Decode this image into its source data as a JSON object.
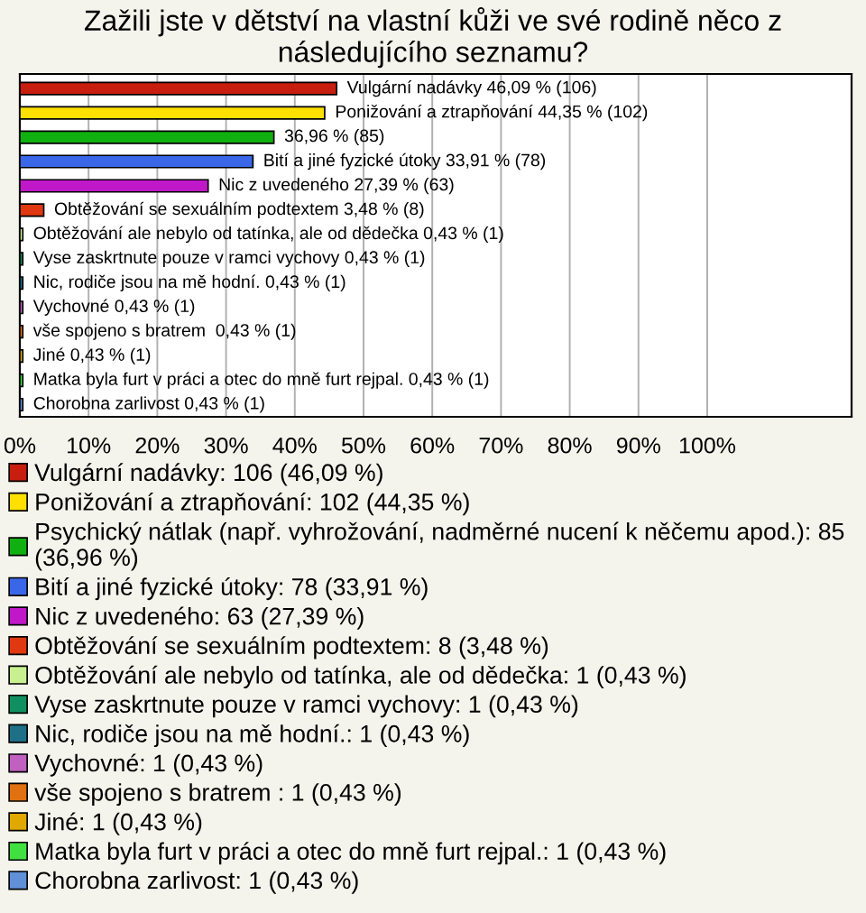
{
  "chart_data": {
    "type": "bar",
    "orientation": "horizontal",
    "title": "Zažili jste v dětství na vlastní kůži ve své rodině něco z následujícího seznamu?",
    "categories": [
      null,
      null,
      null,
      null,
      null,
      null,
      null,
      null,
      null,
      null,
      null,
      null,
      null,
      null
    ],
    "series": [
      {
        "name": "Vulgární nadávky: 106 (46,09 %)",
        "color": "#c81e10",
        "values": [
          46.09,
          null,
          null,
          null,
          null,
          null,
          null,
          null,
          null,
          null,
          null,
          null,
          null,
          null
        ],
        "value_labels": [
          "Vulgární nadávky 46,09 % (106)",
          null,
          null,
          null,
          null,
          null,
          null,
          null,
          null,
          null,
          null,
          null,
          null,
          null
        ]
      },
      {
        "name": "Ponižování a ztrapňování: 102 (44,35 %)",
        "color": "#ffe000",
        "values": [
          null,
          44.35,
          null,
          null,
          null,
          null,
          null,
          null,
          null,
          null,
          null,
          null,
          null,
          null
        ],
        "value_labels": [
          null,
          "Ponižování a ztrapňování 44,35 % (102)",
          null,
          null,
          null,
          null,
          null,
          null,
          null,
          null,
          null,
          null,
          null,
          null
        ]
      },
      {
        "name": "Psychický nátlak (např. vyhrožování, nadměrné nucení k něčemu apod.): 85\n(36,96 %)",
        "color": "#10b010",
        "values": [
          null,
          null,
          36.96,
          null,
          null,
          null,
          null,
          null,
          null,
          null,
          null,
          null,
          null,
          null
        ],
        "value_labels": [
          null,
          null,
          "36,96 % (85)",
          null,
          null,
          null,
          null,
          null,
          null,
          null,
          null,
          null,
          null,
          null
        ]
      },
      {
        "name": "Bití a jiné fyzické útoky: 78 (33,91 %)",
        "color": "#3a66e8",
        "values": [
          null,
          null,
          null,
          33.91,
          null,
          null,
          null,
          null,
          null,
          null,
          null,
          null,
          null,
          null
        ],
        "value_labels": [
          null,
          null,
          null,
          "Bití a jiné fyzické útoky 33,91 % (78)",
          null,
          null,
          null,
          null,
          null,
          null,
          null,
          null,
          null,
          null
        ]
      },
      {
        "name": "Nic z uvedeného: 63 (27,39 %)",
        "color": "#c018c8",
        "values": [
          null,
          null,
          null,
          null,
          27.39,
          null,
          null,
          null,
          null,
          null,
          null,
          null,
          null,
          null
        ],
        "value_labels": [
          null,
          null,
          null,
          null,
          "Nic z uvedeného 27,39 % (63)",
          null,
          null,
          null,
          null,
          null,
          null,
          null,
          null,
          null
        ]
      },
      {
        "name": "Obtěžování se sexuálním podtextem: 8 (3,48 %)",
        "color": "#e03810",
        "values": [
          null,
          null,
          null,
          null,
          null,
          3.48,
          null,
          null,
          null,
          null,
          null,
          null,
          null,
          null
        ],
        "value_labels": [
          null,
          null,
          null,
          null,
          null,
          "Obtěžování se sexuálním podtextem 3,48 % (8)",
          null,
          null,
          null,
          null,
          null,
          null,
          null,
          null
        ]
      },
      {
        "name": "Obtěžování ale nebylo od tatínka, ale od dědečka: 1 (0,43 %)",
        "color": "#c8f090",
        "values": [
          null,
          null,
          null,
          null,
          null,
          null,
          0.43,
          null,
          null,
          null,
          null,
          null,
          null,
          null
        ],
        "value_labels": [
          null,
          null,
          null,
          null,
          null,
          null,
          "Obtěžování ale nebylo od tatínka, ale od dědečka 0,43 % (1)",
          null,
          null,
          null,
          null,
          null,
          null,
          null
        ]
      },
      {
        "name": "Vyse zaskrtnute pouze v ramci vychovy: 1 (0,43 %)",
        "color": "#109060",
        "values": [
          null,
          null,
          null,
          null,
          null,
          null,
          null,
          0.43,
          null,
          null,
          null,
          null,
          null,
          null
        ],
        "value_labels": [
          null,
          null,
          null,
          null,
          null,
          null,
          null,
          "Vyse zaskrtnute pouze v ramci vychovy 0,43 % (1)",
          null,
          null,
          null,
          null,
          null,
          null
        ]
      },
      {
        "name": "Nic, rodiče jsou na mě hodní.: 1 (0,43 %)",
        "color": "#1e7088",
        "values": [
          null,
          null,
          null,
          null,
          null,
          null,
          null,
          null,
          0.43,
          null,
          null,
          null,
          null,
          null
        ],
        "value_labels": [
          null,
          null,
          null,
          null,
          null,
          null,
          null,
          null,
          "Nic, rodiče jsou na mě hodní. 0,43 % (1)",
          null,
          null,
          null,
          null,
          null
        ]
      },
      {
        "name": "Vychovné: 1 (0,43 %)",
        "color": "#c060c0",
        "values": [
          null,
          null,
          null,
          null,
          null,
          null,
          null,
          null,
          null,
          0.43,
          null,
          null,
          null,
          null
        ],
        "value_labels": [
          null,
          null,
          null,
          null,
          null,
          null,
          null,
          null,
          null,
          "Vychovné 0,43 % (1)",
          null,
          null,
          null,
          null
        ]
      },
      {
        "name": "vše spojeno s bratrem : 1 (0,43 %)",
        "color": "#e07010",
        "values": [
          null,
          null,
          null,
          null,
          null,
          null,
          null,
          null,
          null,
          null,
          0.43,
          null,
          null,
          null
        ],
        "value_labels": [
          null,
          null,
          null,
          null,
          null,
          null,
          null,
          null,
          null,
          null,
          "vše spojeno s bratrem  0,43 % (1)",
          null,
          null,
          null
        ]
      },
      {
        "name": "Jiné: 1 (0,43 %)",
        "color": "#e0a800",
        "values": [
          null,
          null,
          null,
          null,
          null,
          null,
          null,
          null,
          null,
          null,
          null,
          0.43,
          null,
          null
        ],
        "value_labels": [
          null,
          null,
          null,
          null,
          null,
          null,
          null,
          null,
          null,
          null,
          null,
          "Jiné 0,43 % (1)",
          null,
          null
        ]
      },
      {
        "name": "Matka byla furt v práci a otec do mně furt rejpal.: 1 (0,43 %)",
        "color": "#40e040",
        "values": [
          null,
          null,
          null,
          null,
          null,
          null,
          null,
          null,
          null,
          null,
          null,
          null,
          0.43,
          null
        ],
        "value_labels": [
          null,
          null,
          null,
          null,
          null,
          null,
          null,
          null,
          null,
          null,
          null,
          null,
          "Matka byla furt v práci a otec do mně furt rejpal. 0,43 % (1)",
          null
        ]
      },
      {
        "name": "Chorobna zarlivost: 1 (0,43 %)",
        "color": "#6090d8",
        "values": [
          null,
          null,
          null,
          null,
          null,
          null,
          null,
          null,
          null,
          null,
          null,
          null,
          null,
          0.43
        ],
        "value_labels": [
          null,
          null,
          null,
          null,
          null,
          null,
          null,
          null,
          null,
          null,
          null,
          null,
          null,
          "Chorobna zarlivost 0,43 % (1)"
        ]
      }
    ],
    "xlim": [
      0,
      121
    ],
    "xticks": [
      {
        "value": 0,
        "label": "0%"
      },
      {
        "value": 10,
        "label": "10%"
      },
      {
        "value": 20,
        "label": "20%"
      },
      {
        "value": 30,
        "label": "30%"
      },
      {
        "value": 40,
        "label": "40%"
      },
      {
        "value": 50,
        "label": "50%"
      },
      {
        "value": 60,
        "label": "60%"
      },
      {
        "value": 70,
        "label": "70%"
      },
      {
        "value": 80,
        "label": "80%"
      },
      {
        "value": 90,
        "label": "90%"
      },
      {
        "value": 100,
        "label": "100%"
      }
    ],
    "grid": "x",
    "legend": "bottom",
    "tick_labels": "x"
  }
}
